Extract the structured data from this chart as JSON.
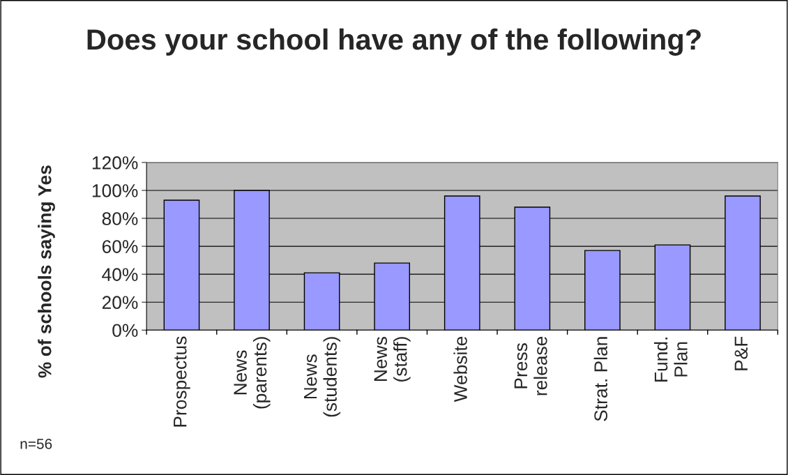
{
  "chart_data": {
    "type": "bar",
    "title": "Does your school have any of the following?",
    "ylabel": "% of schools saying Yes",
    "categories": [
      "Prospectus",
      "News\n(parents)",
      "News\n(students)",
      "News\n(staff)",
      "Website",
      "Press\nrelease",
      "Strat. Plan",
      "Fund.\nPlan",
      "P&F"
    ],
    "values": [
      93,
      100,
      41,
      48,
      96,
      88,
      57,
      61,
      96
    ],
    "color": "#9999ff",
    "ylim": [
      0,
      120
    ],
    "yticks": [
      {
        "value": 0,
        "label": "0%"
      },
      {
        "value": 20,
        "label": "20%"
      },
      {
        "value": 40,
        "label": "40%"
      },
      {
        "value": 60,
        "label": "60%"
      },
      {
        "value": 80,
        "label": "80%"
      },
      {
        "value": 100,
        "label": "100%"
      },
      {
        "value": 120,
        "label": "120%"
      }
    ],
    "grid": "y",
    "annotations": [
      "n=56"
    ]
  }
}
